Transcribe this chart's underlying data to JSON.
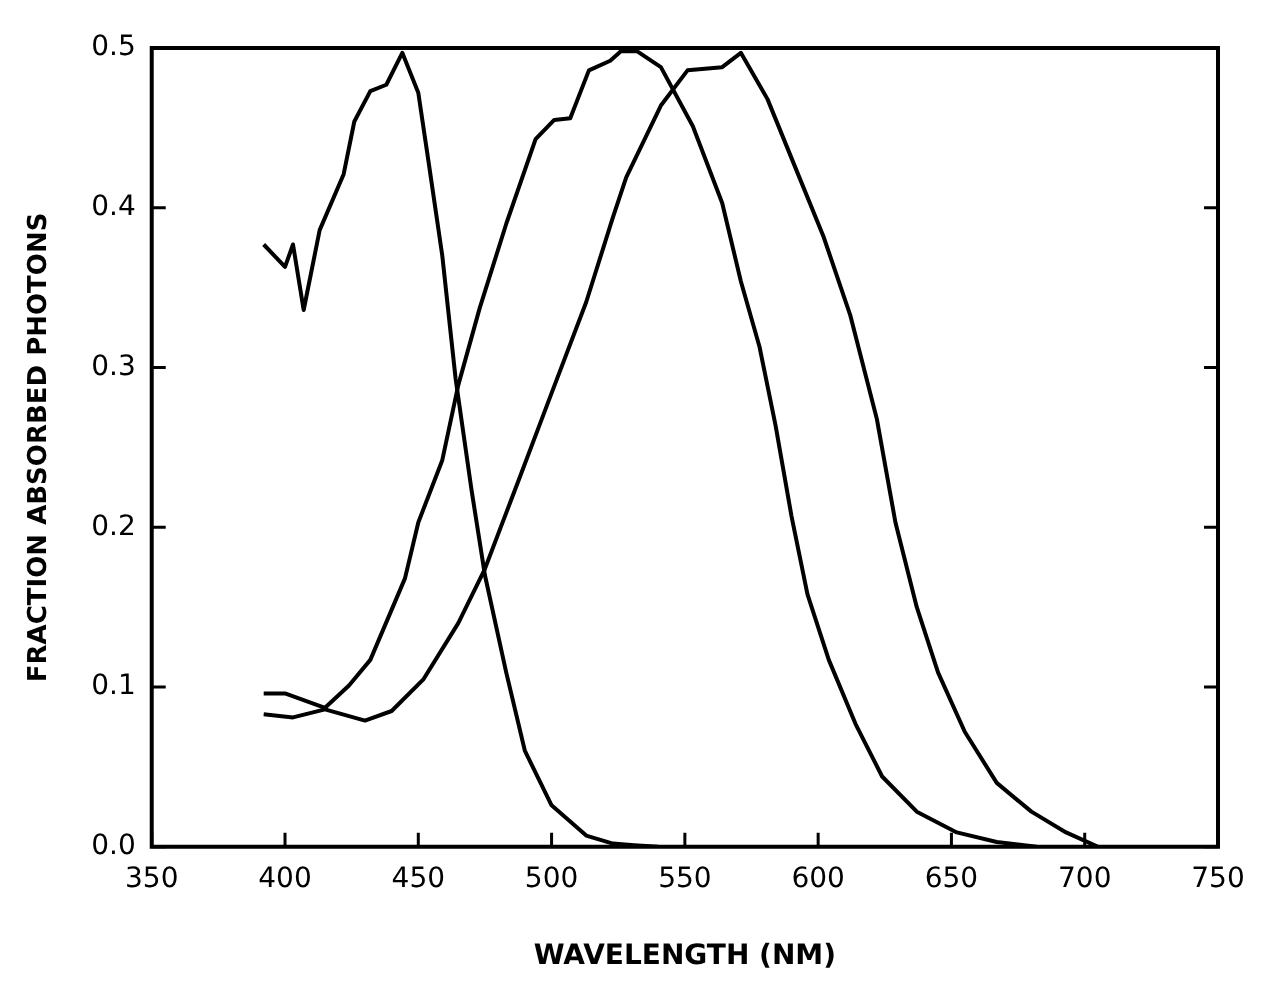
{
  "chart_data": {
    "type": "line",
    "xlabel": "WAVELENGTH (NM)",
    "ylabel": "FRACTION ABSORBED PHOTONS",
    "xlim": [
      350,
      750
    ],
    "xticks": [
      350,
      400,
      450,
      500,
      550,
      600,
      650,
      700,
      750
    ],
    "ylim": [
      0,
      0.5
    ],
    "yticks": [
      {
        "value": 0,
        "label": "0.0"
      },
      {
        "value": 0.1,
        "label": "0.1"
      },
      {
        "value": 0.2,
        "label": "0.2"
      },
      {
        "value": 0.3,
        "label": "0.3"
      },
      {
        "value": 0.4,
        "label": "0.4"
      },
      {
        "value": 0.5,
        "label": "0.5"
      }
    ],
    "grid": false,
    "legend": false,
    "marker": "none",
    "line_style": "solid",
    "series": [
      {
        "color": "#000000",
        "x": [
          392,
          400,
          403,
          407,
          413,
          422,
          426,
          432,
          438,
          444,
          450,
          454,
          459,
          464,
          470,
          475,
          483,
          490,
          500,
          513,
          523,
          531,
          540
        ],
        "values": [
          0.377,
          0.363,
          0.377,
          0.336,
          0.386,
          0.421,
          0.454,
          0.473,
          0.477,
          0.497,
          0.472,
          0.427,
          0.37,
          0.293,
          0.223,
          0.17,
          0.109,
          0.06,
          0.026,
          0.007,
          0.002,
          0.001,
          0
        ]
      },
      {
        "color": "#000000",
        "x": [
          392,
          400,
          415,
          424,
          432,
          445,
          450,
          459,
          465,
          473,
          483,
          494,
          501,
          507,
          514,
          522,
          526,
          532,
          541,
          553,
          564,
          571,
          578,
          584,
          590,
          596,
          604,
          614,
          624,
          637,
          652,
          667,
          682
        ],
        "values": [
          0.096,
          0.096,
          0.087,
          0.101,
          0.117,
          0.168,
          0.203,
          0.242,
          0.289,
          0.337,
          0.39,
          0.443,
          0.455,
          0.456,
          0.486,
          0.492,
          0.498,
          0.498,
          0.488,
          0.451,
          0.403,
          0.354,
          0.313,
          0.264,
          0.207,
          0.158,
          0.117,
          0.077,
          0.044,
          0.022,
          0.009,
          0.003,
          0
        ]
      },
      {
        "color": "#000000",
        "x": [
          392,
          403,
          415,
          430,
          440,
          452,
          465,
          475,
          488,
          500,
          513,
          523,
          528,
          541,
          551,
          564,
          571,
          581,
          591,
          602,
          612,
          622,
          629,
          637,
          645,
          655,
          667,
          680,
          693,
          705
        ],
        "values": [
          0.083,
          0.081,
          0.086,
          0.079,
          0.085,
          0.105,
          0.14,
          0.174,
          0.231,
          0.284,
          0.341,
          0.394,
          0.419,
          0.464,
          0.486,
          0.488,
          0.497,
          0.468,
          0.427,
          0.382,
          0.333,
          0.268,
          0.203,
          0.15,
          0.109,
          0.072,
          0.04,
          0.022,
          0.009,
          0
        ]
      }
    ]
  }
}
